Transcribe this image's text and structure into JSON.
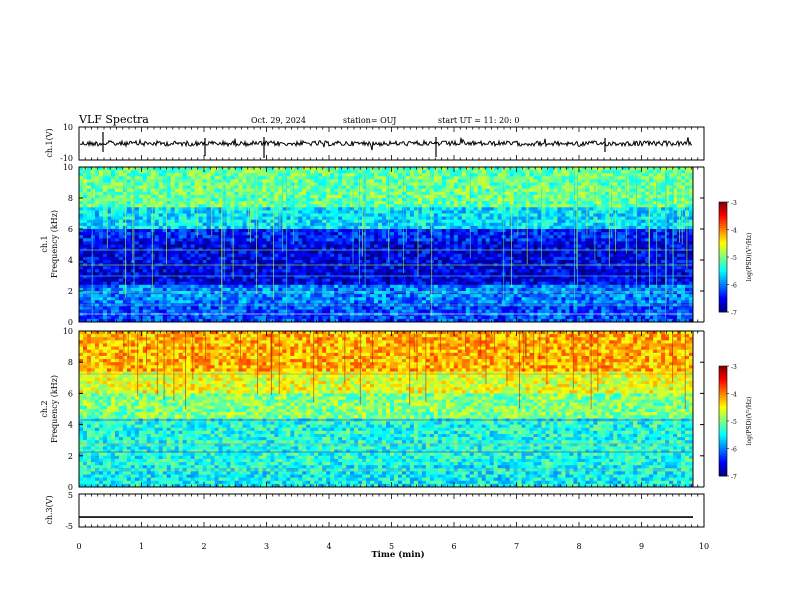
{
  "header": {
    "title": "VLF Spectra",
    "date": "Oct. 29, 2024",
    "station": "station= OUJ",
    "start": "start  UT =   11: 20: 0"
  },
  "colors": {
    "axis": "#000000",
    "signal": "#000000"
  },
  "colorbar": {
    "label": "log(PSD)(V²/Hz)",
    "ticks": [
      "-3",
      "-4",
      "-5",
      "-6",
      "-7"
    ],
    "range": [
      -7,
      -3
    ],
    "colormap": "jet"
  },
  "chart_data": [
    {
      "type": "line",
      "name": "ch.1 waveform",
      "ylabel": "ch.1(V)",
      "ylim": [
        -10,
        10
      ],
      "yticks": [
        "10",
        "-10"
      ],
      "baseline_value": 0,
      "x_range_min": [
        0,
        9.83
      ]
    },
    {
      "type": "heatmap",
      "ylabel": "ch.1\nFrequency (kHz)",
      "ylim": [
        0,
        10
      ],
      "yticks": [
        "0",
        "2",
        "4",
        "6",
        "8",
        "10"
      ],
      "description_bands": [
        {
          "from": 0,
          "to": 1.2,
          "log_psd": -6.2
        },
        {
          "from": 1.2,
          "to": 2.5,
          "log_psd": -6.0
        },
        {
          "from": 2.5,
          "to": 5.2,
          "log_psd": -6.6
        },
        {
          "from": 5.2,
          "to": 6.0,
          "log_psd": -6.4
        },
        {
          "from": 6.0,
          "to": 7.5,
          "log_psd": -5.6
        },
        {
          "from": 7.5,
          "to": 10,
          "log_psd": -5.1
        }
      ]
    },
    {
      "type": "heatmap",
      "ylabel": "ch.2\nFrequency (kHz)",
      "ylim": [
        0,
        10
      ],
      "yticks": [
        "0",
        "2",
        "4",
        "6",
        "8",
        "10"
      ],
      "description_bands": [
        {
          "from": 0,
          "to": 1.5,
          "log_psd": -5.5
        },
        {
          "from": 1.5,
          "to": 4.5,
          "log_psd": -5.4
        },
        {
          "from": 4.5,
          "to": 6.0,
          "log_psd": -5.0
        },
        {
          "from": 6.0,
          "to": 7.4,
          "log_psd": -4.6
        },
        {
          "from": 7.4,
          "to": 10,
          "log_psd": -4.2
        }
      ]
    },
    {
      "type": "line",
      "name": "ch.3 waveform",
      "ylabel": "ch.3(V)",
      "ylim": [
        -5,
        5
      ],
      "yticks": [
        "5",
        "-5"
      ],
      "baseline_value": -2
    }
  ],
  "xaxis": {
    "label": "Time (min)",
    "range": [
      0,
      10
    ],
    "ticks": [
      "0",
      "1",
      "2",
      "3",
      "4",
      "5",
      "6",
      "7",
      "8",
      "9",
      "10"
    ]
  }
}
